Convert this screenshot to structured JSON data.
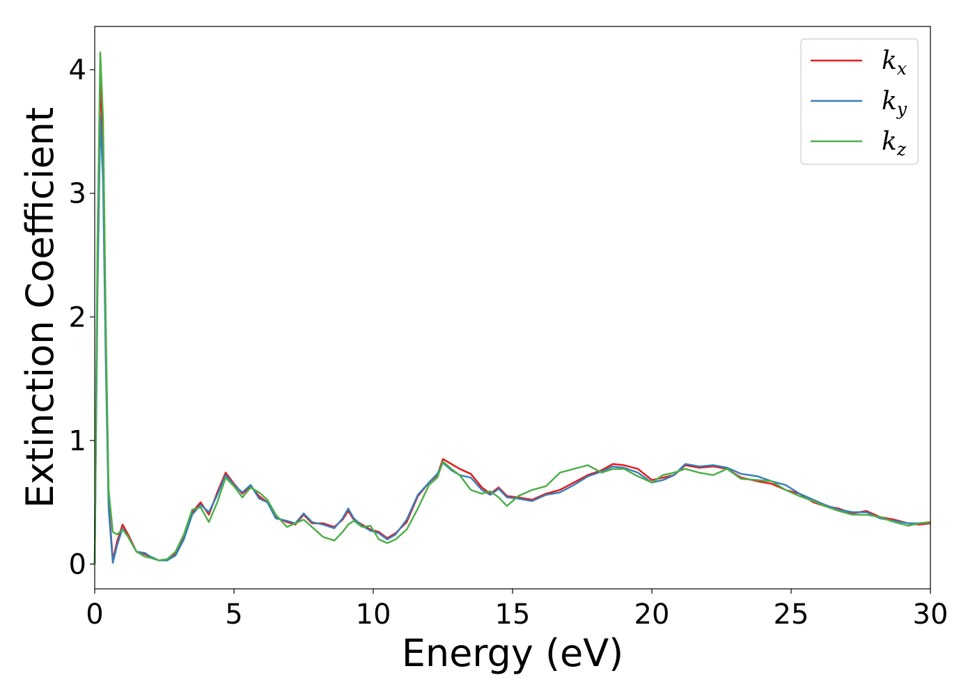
{
  "chart_data": {
    "type": "line",
    "title": "",
    "xlabel": "Energy (eV)",
    "ylabel": "Extinction Coefficient",
    "xlim": [
      0,
      30
    ],
    "ylim": [
      -0.2,
      4.35
    ],
    "xticks": [
      0,
      5,
      10,
      15,
      20,
      25,
      30
    ],
    "yticks": [
      0,
      1,
      2,
      3,
      4
    ],
    "grid": false,
    "legend_position": "top-right",
    "series": [
      {
        "name": "k_x",
        "label_main": "k",
        "label_sub": "x",
        "color": "#e41a1c",
        "points": [
          [
            0,
            0
          ],
          [
            0.1,
            2.4
          ],
          [
            0.2,
            3.93
          ],
          [
            0.3,
            3.4
          ],
          [
            0.4,
            1.8
          ],
          [
            0.5,
            0.5
          ],
          [
            0.65,
            0.03
          ],
          [
            0.8,
            0.18
          ],
          [
            1.0,
            0.32
          ],
          [
            1.2,
            0.24
          ],
          [
            1.5,
            0.1
          ],
          [
            1.8,
            0.08
          ],
          [
            2.0,
            0.06
          ],
          [
            2.3,
            0.03
          ],
          [
            2.6,
            0.03
          ],
          [
            2.9,
            0.08
          ],
          [
            3.2,
            0.22
          ],
          [
            3.5,
            0.42
          ],
          [
            3.8,
            0.5
          ],
          [
            4.1,
            0.4
          ],
          [
            4.4,
            0.58
          ],
          [
            4.7,
            0.74
          ],
          [
            5.0,
            0.65
          ],
          [
            5.3,
            0.57
          ],
          [
            5.6,
            0.63
          ],
          [
            5.9,
            0.55
          ],
          [
            6.2,
            0.5
          ],
          [
            6.5,
            0.38
          ],
          [
            6.9,
            0.34
          ],
          [
            7.2,
            0.32
          ],
          [
            7.5,
            0.4
          ],
          [
            7.8,
            0.33
          ],
          [
            8.2,
            0.33
          ],
          [
            8.6,
            0.3
          ],
          [
            8.9,
            0.36
          ],
          [
            9.1,
            0.43
          ],
          [
            9.3,
            0.36
          ],
          [
            9.6,
            0.32
          ],
          [
            9.9,
            0.28
          ],
          [
            10.2,
            0.26
          ],
          [
            10.5,
            0.21
          ],
          [
            10.8,
            0.25
          ],
          [
            11.2,
            0.34
          ],
          [
            11.6,
            0.55
          ],
          [
            12.0,
            0.66
          ],
          [
            12.3,
            0.72
          ],
          [
            12.5,
            0.85
          ],
          [
            12.8,
            0.81
          ],
          [
            13.1,
            0.77
          ],
          [
            13.5,
            0.73
          ],
          [
            13.9,
            0.62
          ],
          [
            14.2,
            0.57
          ],
          [
            14.5,
            0.62
          ],
          [
            14.8,
            0.55
          ],
          [
            15.2,
            0.54
          ],
          [
            15.7,
            0.52
          ],
          [
            16.2,
            0.57
          ],
          [
            16.7,
            0.6
          ],
          [
            17.2,
            0.66
          ],
          [
            17.7,
            0.72
          ],
          [
            18.2,
            0.76
          ],
          [
            18.6,
            0.81
          ],
          [
            19.0,
            0.8
          ],
          [
            19.5,
            0.77
          ],
          [
            20.0,
            0.68
          ],
          [
            20.4,
            0.7
          ],
          [
            20.8,
            0.72
          ],
          [
            21.2,
            0.8
          ],
          [
            21.7,
            0.78
          ],
          [
            22.2,
            0.79
          ],
          [
            22.7,
            0.77
          ],
          [
            23.2,
            0.7
          ],
          [
            23.8,
            0.67
          ],
          [
            24.3,
            0.65
          ],
          [
            24.8,
            0.6
          ],
          [
            25.3,
            0.57
          ],
          [
            25.8,
            0.5
          ],
          [
            26.2,
            0.47
          ],
          [
            26.7,
            0.45
          ],
          [
            27.2,
            0.41
          ],
          [
            27.7,
            0.43
          ],
          [
            28.2,
            0.38
          ],
          [
            28.7,
            0.36
          ],
          [
            29.2,
            0.33
          ],
          [
            29.6,
            0.32
          ],
          [
            30.0,
            0.33
          ]
        ]
      },
      {
        "name": "k_y",
        "label_main": "k",
        "label_sub": "y",
        "color": "#377eb8",
        "points": [
          [
            0,
            0
          ],
          [
            0.1,
            2.2
          ],
          [
            0.2,
            3.63
          ],
          [
            0.3,
            3.1
          ],
          [
            0.4,
            1.6
          ],
          [
            0.5,
            0.45
          ],
          [
            0.65,
            0.01
          ],
          [
            0.8,
            0.15
          ],
          [
            1.0,
            0.29
          ],
          [
            1.2,
            0.22
          ],
          [
            1.5,
            0.1
          ],
          [
            1.8,
            0.09
          ],
          [
            2.0,
            0.06
          ],
          [
            2.3,
            0.03
          ],
          [
            2.6,
            0.03
          ],
          [
            2.9,
            0.07
          ],
          [
            3.2,
            0.2
          ],
          [
            3.5,
            0.4
          ],
          [
            3.8,
            0.48
          ],
          [
            4.1,
            0.42
          ],
          [
            4.4,
            0.56
          ],
          [
            4.7,
            0.72
          ],
          [
            5.0,
            0.64
          ],
          [
            5.3,
            0.58
          ],
          [
            5.6,
            0.64
          ],
          [
            5.9,
            0.53
          ],
          [
            6.2,
            0.5
          ],
          [
            6.5,
            0.37
          ],
          [
            6.9,
            0.35
          ],
          [
            7.2,
            0.33
          ],
          [
            7.5,
            0.41
          ],
          [
            7.8,
            0.34
          ],
          [
            8.2,
            0.32
          ],
          [
            8.6,
            0.29
          ],
          [
            8.9,
            0.37
          ],
          [
            9.1,
            0.45
          ],
          [
            9.3,
            0.37
          ],
          [
            9.6,
            0.31
          ],
          [
            9.9,
            0.27
          ],
          [
            10.2,
            0.25
          ],
          [
            10.5,
            0.2
          ],
          [
            10.8,
            0.24
          ],
          [
            11.2,
            0.36
          ],
          [
            11.6,
            0.56
          ],
          [
            12.0,
            0.66
          ],
          [
            12.3,
            0.73
          ],
          [
            12.5,
            0.82
          ],
          [
            12.8,
            0.76
          ],
          [
            13.1,
            0.72
          ],
          [
            13.5,
            0.7
          ],
          [
            13.9,
            0.6
          ],
          [
            14.2,
            0.56
          ],
          [
            14.5,
            0.61
          ],
          [
            14.8,
            0.54
          ],
          [
            15.2,
            0.53
          ],
          [
            15.7,
            0.51
          ],
          [
            16.2,
            0.56
          ],
          [
            16.7,
            0.58
          ],
          [
            17.2,
            0.64
          ],
          [
            17.7,
            0.71
          ],
          [
            18.2,
            0.75
          ],
          [
            18.6,
            0.79
          ],
          [
            19.0,
            0.78
          ],
          [
            19.5,
            0.74
          ],
          [
            20.0,
            0.66
          ],
          [
            20.4,
            0.68
          ],
          [
            20.8,
            0.72
          ],
          [
            21.2,
            0.81
          ],
          [
            21.7,
            0.79
          ],
          [
            22.2,
            0.8
          ],
          [
            22.7,
            0.78
          ],
          [
            23.2,
            0.73
          ],
          [
            23.8,
            0.71
          ],
          [
            24.3,
            0.67
          ],
          [
            24.8,
            0.64
          ],
          [
            25.3,
            0.57
          ],
          [
            25.8,
            0.52
          ],
          [
            26.2,
            0.48
          ],
          [
            26.7,
            0.44
          ],
          [
            27.2,
            0.42
          ],
          [
            27.7,
            0.42
          ],
          [
            28.2,
            0.37
          ],
          [
            28.7,
            0.35
          ],
          [
            29.2,
            0.33
          ],
          [
            29.6,
            0.33
          ],
          [
            30.0,
            0.34
          ]
        ]
      },
      {
        "name": "k_z",
        "label_main": "k",
        "label_sub": "z",
        "color": "#4daf4a",
        "points": [
          [
            0,
            0
          ],
          [
            0.1,
            2.6
          ],
          [
            0.2,
            4.14
          ],
          [
            0.3,
            3.6
          ],
          [
            0.4,
            1.9
          ],
          [
            0.5,
            0.6
          ],
          [
            0.65,
            0.26
          ],
          [
            0.8,
            0.24
          ],
          [
            1.0,
            0.28
          ],
          [
            1.2,
            0.22
          ],
          [
            1.5,
            0.1
          ],
          [
            1.8,
            0.06
          ],
          [
            2.0,
            0.05
          ],
          [
            2.3,
            0.03
          ],
          [
            2.6,
            0.04
          ],
          [
            2.9,
            0.1
          ],
          [
            3.2,
            0.24
          ],
          [
            3.5,
            0.44
          ],
          [
            3.8,
            0.46
          ],
          [
            4.1,
            0.34
          ],
          [
            4.4,
            0.5
          ],
          [
            4.7,
            0.7
          ],
          [
            5.0,
            0.63
          ],
          [
            5.3,
            0.54
          ],
          [
            5.6,
            0.62
          ],
          [
            5.9,
            0.58
          ],
          [
            6.2,
            0.52
          ],
          [
            6.5,
            0.4
          ],
          [
            6.9,
            0.3
          ],
          [
            7.2,
            0.33
          ],
          [
            7.5,
            0.36
          ],
          [
            7.8,
            0.3
          ],
          [
            8.2,
            0.22
          ],
          [
            8.6,
            0.19
          ],
          [
            8.9,
            0.26
          ],
          [
            9.1,
            0.32
          ],
          [
            9.3,
            0.35
          ],
          [
            9.6,
            0.3
          ],
          [
            9.9,
            0.31
          ],
          [
            10.2,
            0.2
          ],
          [
            10.5,
            0.17
          ],
          [
            10.8,
            0.2
          ],
          [
            11.2,
            0.28
          ],
          [
            11.6,
            0.45
          ],
          [
            12.0,
            0.64
          ],
          [
            12.3,
            0.7
          ],
          [
            12.5,
            0.83
          ],
          [
            12.8,
            0.77
          ],
          [
            13.1,
            0.72
          ],
          [
            13.5,
            0.6
          ],
          [
            13.9,
            0.57
          ],
          [
            14.2,
            0.59
          ],
          [
            14.5,
            0.54
          ],
          [
            14.8,
            0.47
          ],
          [
            15.2,
            0.55
          ],
          [
            15.7,
            0.6
          ],
          [
            16.2,
            0.63
          ],
          [
            16.7,
            0.74
          ],
          [
            17.2,
            0.77
          ],
          [
            17.7,
            0.8
          ],
          [
            18.2,
            0.74
          ],
          [
            18.6,
            0.77
          ],
          [
            19.0,
            0.77
          ],
          [
            19.5,
            0.71
          ],
          [
            20.0,
            0.66
          ],
          [
            20.4,
            0.72
          ],
          [
            20.8,
            0.74
          ],
          [
            21.2,
            0.77
          ],
          [
            21.7,
            0.74
          ],
          [
            22.2,
            0.72
          ],
          [
            22.7,
            0.77
          ],
          [
            23.2,
            0.69
          ],
          [
            23.8,
            0.68
          ],
          [
            24.3,
            0.67
          ],
          [
            24.8,
            0.6
          ],
          [
            25.3,
            0.55
          ],
          [
            25.8,
            0.51
          ],
          [
            26.2,
            0.47
          ],
          [
            26.7,
            0.43
          ],
          [
            27.2,
            0.4
          ],
          [
            27.7,
            0.4
          ],
          [
            28.2,
            0.38
          ],
          [
            28.7,
            0.34
          ],
          [
            29.2,
            0.31
          ],
          [
            29.6,
            0.33
          ],
          [
            30.0,
            0.34
          ]
        ]
      }
    ]
  }
}
